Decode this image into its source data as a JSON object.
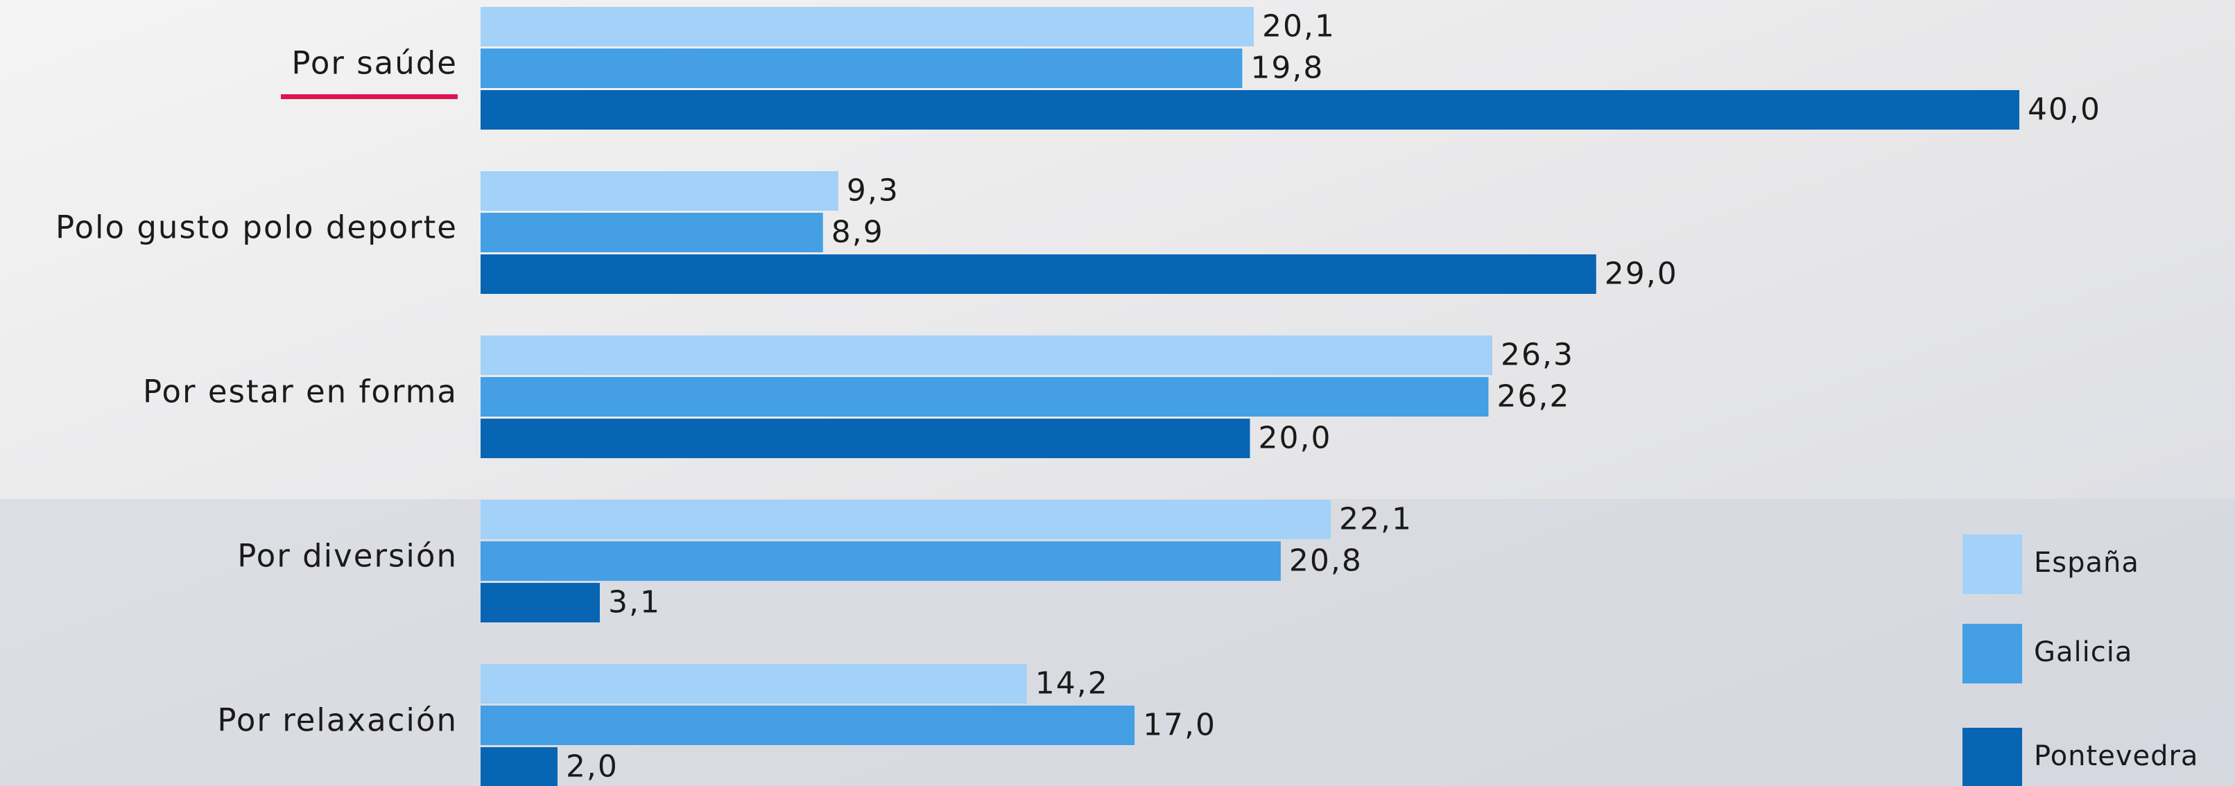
{
  "chart_data": {
    "type": "bar",
    "orientation": "horizontal",
    "categories": [
      "Por saúde",
      "Polo gusto polo deporte",
      "Por estar en forma",
      "Por diversión",
      "Por relaxación"
    ],
    "series": [
      {
        "name": "España",
        "color": "#a3d1f7",
        "values": [
          20.1,
          9.3,
          26.3,
          22.1,
          14.2
        ],
        "value_labels": [
          "20,1",
          "9,3",
          "26,3",
          "22,1",
          "14,2"
        ]
      },
      {
        "name": "Galicia",
        "color": "#449fe5",
        "values": [
          19.8,
          8.9,
          26.2,
          20.8,
          17.0
        ],
        "value_labels": [
          "19,8",
          "8,9",
          "26,2",
          "20,8",
          "17,0"
        ]
      },
      {
        "name": "Pontevedra",
        "color": "#0765b3",
        "values": [
          40.0,
          29.0,
          20.0,
          3.1,
          2.0
        ],
        "value_labels": [
          "40,0",
          "29,0",
          "20,0",
          "3,1",
          "2,0"
        ]
      }
    ],
    "legend": "right"
  }
}
